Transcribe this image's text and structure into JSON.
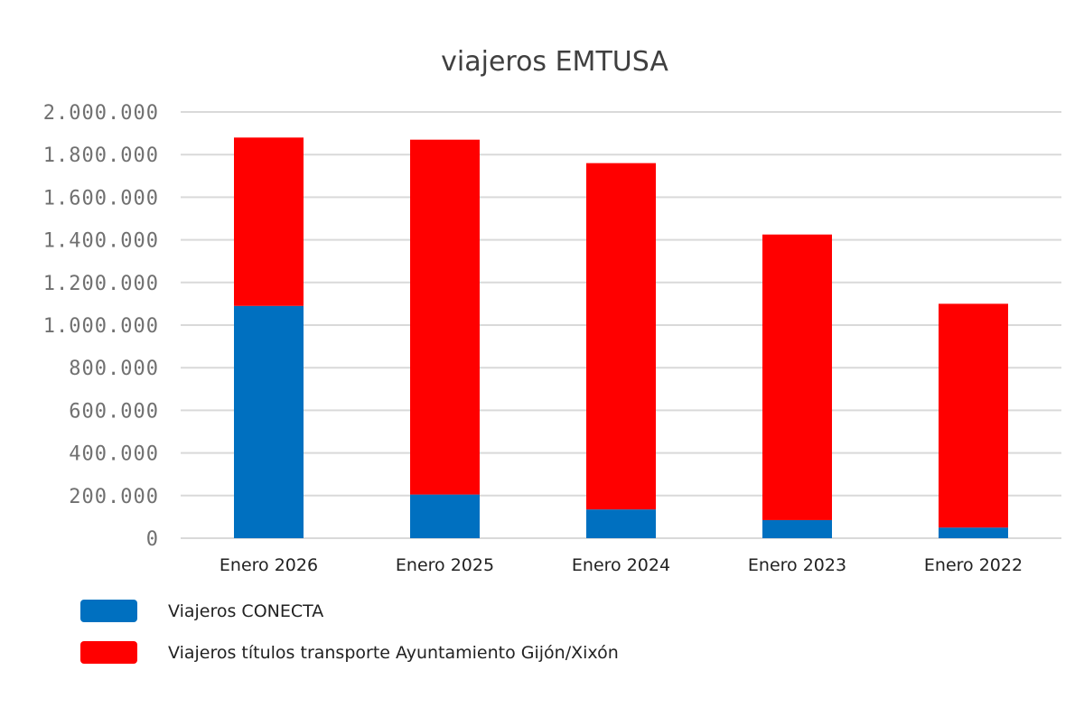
{
  "chart_data": {
    "type": "bar",
    "stacked": true,
    "title": "viajeros EMTUSA",
    "xlabel": "",
    "ylabel": "",
    "categories": [
      "Enero 2026",
      "Enero 2025",
      "Enero 2024",
      "Enero 2023",
      "Enero 2022"
    ],
    "series": [
      {
        "name": "Viajeros CONECTA",
        "color": "#0070C0",
        "values": [
          1090000,
          205000,
          135000,
          85000,
          50000
        ]
      },
      {
        "name": "Viajeros títulos transporte Ayuntamiento Gijón/Xixón",
        "color": "#FF0000",
        "values": [
          790000,
          1665000,
          1625000,
          1340000,
          1050000
        ]
      }
    ],
    "ylim": [
      0,
      2000000
    ],
    "yticks": [
      0,
      200000,
      400000,
      600000,
      800000,
      1000000,
      1200000,
      1400000,
      1600000,
      1800000,
      2000000
    ],
    "ytick_labels": [
      "0",
      "200.000",
      "400.000",
      "600.000",
      "800.000",
      "1.000.000",
      "1.200.000",
      "1.400.000",
      "1.600.000",
      "1.800.000",
      "2.000.000"
    ],
    "grid": true,
    "legend_position": "bottom-left"
  }
}
